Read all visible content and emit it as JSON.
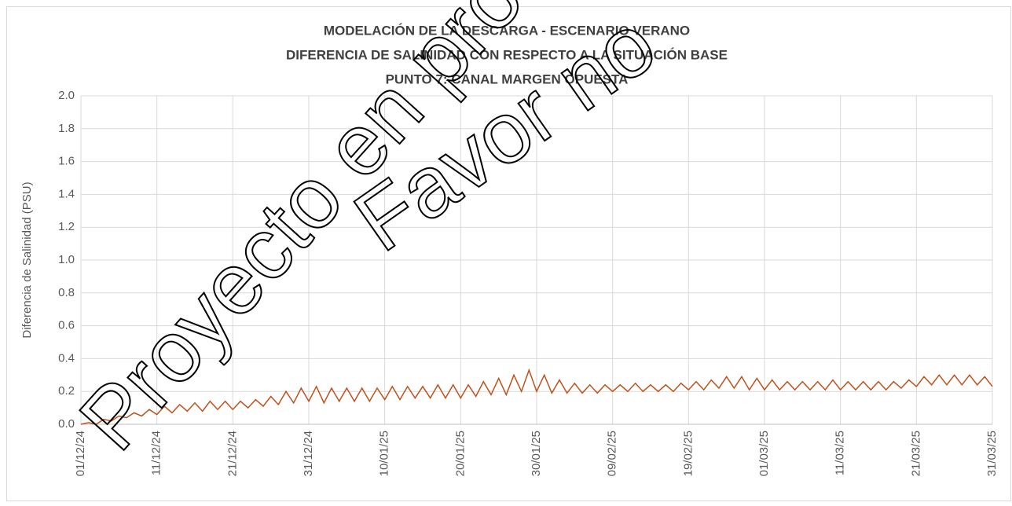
{
  "chart_data": {
    "type": "line",
    "title": [
      "MODELACIÓN DE LA DESCARGA - ESCENARIO VERANO",
      "DIFERENCIA DE SALINIDAD CON RESPECTO A LA SITUACIÓN BASE",
      "PUNTO 7: CANAL MARGEN OPUESTA"
    ],
    "y_label": "Diferencia de Salinidad (PSU)",
    "watermark": [
      "Proyecto en proceso",
      "Favor no"
    ],
    "color": "#c0501b",
    "grid": true,
    "ylim": [
      0,
      2
    ],
    "yticks": [
      {
        "value": 0,
        "label": "0.0"
      },
      {
        "value": 0.2,
        "label": "0.2"
      },
      {
        "value": 0.4,
        "label": "0.4"
      },
      {
        "value": 0.6,
        "label": "0.6"
      },
      {
        "value": 0.8,
        "label": "0.8"
      },
      {
        "value": 1,
        "label": "1.0"
      },
      {
        "value": 1.2,
        "label": "1.2"
      },
      {
        "value": 1.4,
        "label": "1.4"
      },
      {
        "value": 1.6,
        "label": "1.6"
      },
      {
        "value": 1.8,
        "label": "1.8"
      },
      {
        "value": 2,
        "label": "2.0"
      }
    ],
    "xticks": [
      "01/12/24",
      "11/12/24",
      "21/12/24",
      "31/12/24",
      "10/01/25",
      "20/01/25",
      "30/01/25",
      "09/02/25",
      "19/02/25",
      "01/03/25",
      "11/03/25",
      "21/03/25",
      "31/03/25"
    ],
    "x": [
      "01/12/24",
      "02/12/24",
      "03/12/24",
      "04/12/24",
      "05/12/24",
      "06/12/24",
      "07/12/24",
      "08/12/24",
      "09/12/24",
      "10/12/24",
      "11/12/24",
      "12/12/24",
      "13/12/24",
      "14/12/24",
      "15/12/24",
      "16/12/24",
      "17/12/24",
      "18/12/24",
      "19/12/24",
      "20/12/24",
      "21/12/24",
      "22/12/24",
      "23/12/24",
      "24/12/24",
      "25/12/24",
      "26/12/24",
      "27/12/24",
      "28/12/24",
      "29/12/24",
      "30/12/24",
      "31/12/24",
      "01/01/25",
      "02/01/25",
      "03/01/25",
      "04/01/25",
      "05/01/25",
      "06/01/25",
      "07/01/25",
      "08/01/25",
      "09/01/25",
      "10/01/25",
      "11/01/25",
      "12/01/25",
      "13/01/25",
      "14/01/25",
      "15/01/25",
      "16/01/25",
      "17/01/25",
      "18/01/25",
      "19/01/25",
      "20/01/25",
      "21/01/25",
      "22/01/25",
      "23/01/25",
      "24/01/25",
      "25/01/25",
      "26/01/25",
      "27/01/25",
      "28/01/25",
      "29/01/25",
      "30/01/25",
      "31/01/25",
      "01/02/25",
      "02/02/25",
      "03/02/25",
      "04/02/25",
      "05/02/25",
      "06/02/25",
      "07/02/25",
      "08/02/25",
      "09/02/25",
      "10/02/25",
      "11/02/25",
      "12/02/25",
      "13/02/25",
      "14/02/25",
      "15/02/25",
      "16/02/25",
      "17/02/25",
      "18/02/25",
      "19/02/25",
      "20/02/25",
      "21/02/25",
      "22/02/25",
      "23/02/25",
      "24/02/25",
      "25/02/25",
      "26/02/25",
      "27/02/25",
      "28/02/25",
      "01/03/25",
      "02/03/25",
      "03/03/25",
      "04/03/25",
      "05/03/25",
      "06/03/25",
      "07/03/25",
      "08/03/25",
      "09/03/25",
      "10/03/25",
      "11/03/25",
      "12/03/25",
      "13/03/25",
      "14/03/25",
      "15/03/25",
      "16/03/25",
      "17/03/25",
      "18/03/25",
      "19/03/25",
      "20/03/25",
      "21/03/25",
      "22/03/25",
      "23/03/25",
      "24/03/25",
      "25/03/25",
      "26/03/25",
      "27/03/25",
      "28/03/25",
      "29/03/25",
      "30/03/25",
      "31/03/25"
    ],
    "values": [
      0,
      0.01,
      0.0,
      0.03,
      0.02,
      0.05,
      0.04,
      0.07,
      0.05,
      0.09,
      0.06,
      0.11,
      0.07,
      0.12,
      0.08,
      0.13,
      0.08,
      0.14,
      0.09,
      0.14,
      0.09,
      0.14,
      0.1,
      0.15,
      0.11,
      0.17,
      0.12,
      0.2,
      0.13,
      0.22,
      0.14,
      0.23,
      0.13,
      0.22,
      0.14,
      0.22,
      0.14,
      0.22,
      0.14,
      0.22,
      0.15,
      0.23,
      0.15,
      0.23,
      0.16,
      0.23,
      0.16,
      0.24,
      0.16,
      0.24,
      0.16,
      0.24,
      0.17,
      0.26,
      0.18,
      0.28,
      0.18,
      0.3,
      0.2,
      0.33,
      0.2,
      0.3,
      0.19,
      0.27,
      0.19,
      0.25,
      0.19,
      0.24,
      0.19,
      0.24,
      0.2,
      0.24,
      0.2,
      0.25,
      0.2,
      0.24,
      0.2,
      0.24,
      0.2,
      0.25,
      0.21,
      0.26,
      0.21,
      0.27,
      0.22,
      0.29,
      0.22,
      0.29,
      0.21,
      0.28,
      0.21,
      0.27,
      0.21,
      0.26,
      0.21,
      0.26,
      0.21,
      0.26,
      0.21,
      0.27,
      0.21,
      0.26,
      0.21,
      0.26,
      0.21,
      0.26,
      0.21,
      0.26,
      0.22,
      0.27,
      0.23,
      0.29,
      0.24,
      0.3,
      0.24,
      0.3,
      0.24,
      0.3,
      0.24,
      0.29,
      0.23
    ]
  }
}
